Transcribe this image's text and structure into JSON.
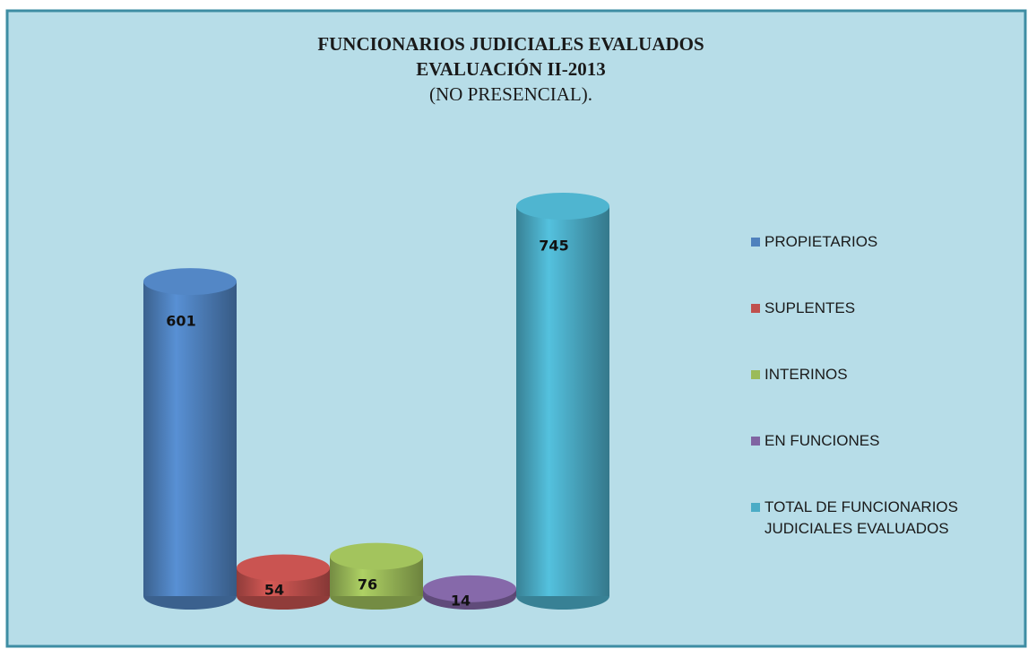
{
  "chart_data": {
    "type": "bar",
    "title": [
      "FUNCIONARIOS JUDICIALES EVALUADOS",
      "EVALUACIÓN  II-2013",
      "(NO PRESENCIAL)."
    ],
    "series": [
      {
        "name": "PROPIETARIOS",
        "color": "#4f81bd",
        "values": [
          601
        ]
      },
      {
        "name": "SUPLENTES",
        "color": "#c0504d",
        "values": [
          54
        ]
      },
      {
        "name": "INTERINOS",
        "color": "#9bbb59",
        "values": [
          76
        ]
      },
      {
        "name": "EN FUNCIONES",
        "color": "#8064a2",
        "values": [
          14
        ]
      },
      {
        "name": "TOTAL DE FUNCIONARIOS JUDICIALES EVALUADOS",
        "color": "#4bacc6",
        "values": [
          745
        ]
      }
    ],
    "legend": "right"
  }
}
